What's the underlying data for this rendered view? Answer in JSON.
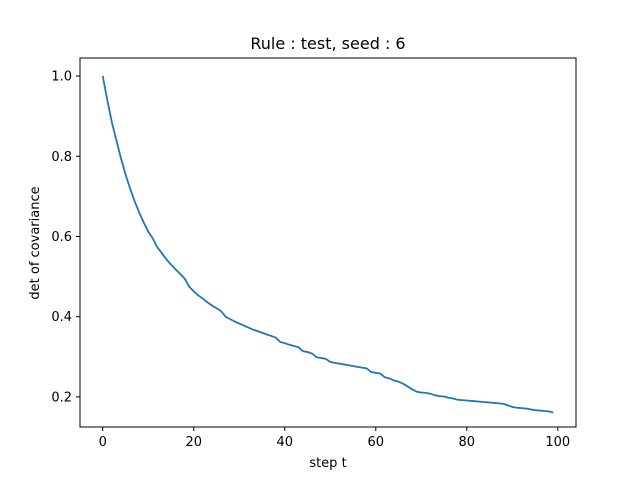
{
  "chart_data": {
    "type": "line",
    "title": "Rule : test, seed : 6",
    "xlabel": "step t",
    "ylabel": "det of covariance",
    "xlim": [
      -5,
      104
    ],
    "ylim": [
      0.125,
      1.045
    ],
    "x_ticks": [
      0,
      20,
      40,
      60,
      80,
      100
    ],
    "y_ticks": [
      0.2,
      0.4,
      0.6,
      0.8,
      1.0
    ],
    "x_tick_labels": [
      "0",
      "20",
      "40",
      "60",
      "80",
      "100"
    ],
    "y_tick_labels": [
      "0.2",
      "0.4",
      "0.6",
      "0.8",
      "1.0"
    ],
    "grid": false,
    "series": [
      {
        "color": "#1f77b4",
        "x": [
          0,
          1,
          2,
          3,
          4,
          5,
          6,
          7,
          8,
          9,
          10,
          11,
          12,
          13,
          14,
          15,
          16,
          17,
          18,
          19,
          20,
          21,
          22,
          23,
          24,
          25,
          26,
          27,
          28,
          29,
          30,
          31,
          32,
          33,
          34,
          35,
          36,
          37,
          38,
          39,
          40,
          41,
          42,
          43,
          44,
          45,
          46,
          47,
          48,
          49,
          50,
          51,
          52,
          53,
          54,
          55,
          56,
          57,
          58,
          59,
          60,
          61,
          62,
          63,
          64,
          65,
          66,
          67,
          68,
          69,
          70,
          71,
          72,
          73,
          74,
          75,
          76,
          77,
          78,
          79,
          80,
          81,
          82,
          83,
          84,
          85,
          86,
          87,
          88,
          89,
          90,
          91,
          92,
          93,
          94,
          95,
          96,
          97,
          98,
          99
        ],
        "y": [
          1.0,
          0.94,
          0.885,
          0.84,
          0.795,
          0.755,
          0.72,
          0.688,
          0.66,
          0.635,
          0.612,
          0.595,
          0.573,
          0.558,
          0.543,
          0.53,
          0.518,
          0.507,
          0.495,
          0.475,
          0.463,
          0.453,
          0.445,
          0.436,
          0.428,
          0.421,
          0.414,
          0.4,
          0.394,
          0.388,
          0.383,
          0.378,
          0.373,
          0.368,
          0.364,
          0.36,
          0.356,
          0.352,
          0.348,
          0.337,
          0.334,
          0.33,
          0.327,
          0.324,
          0.314,
          0.312,
          0.308,
          0.299,
          0.297,
          0.295,
          0.287,
          0.285,
          0.283,
          0.281,
          0.279,
          0.277,
          0.275,
          0.273,
          0.271,
          0.262,
          0.26,
          0.258,
          0.249,
          0.246,
          0.241,
          0.238,
          0.233,
          0.226,
          0.219,
          0.213,
          0.211,
          0.21,
          0.208,
          0.204,
          0.202,
          0.201,
          0.198,
          0.196,
          0.193,
          0.192,
          0.191,
          0.19,
          0.189,
          0.188,
          0.187,
          0.186,
          0.185,
          0.184,
          0.183,
          0.179,
          0.175,
          0.173,
          0.172,
          0.171,
          0.169,
          0.167,
          0.166,
          0.165,
          0.164,
          0.161
        ]
      }
    ]
  }
}
